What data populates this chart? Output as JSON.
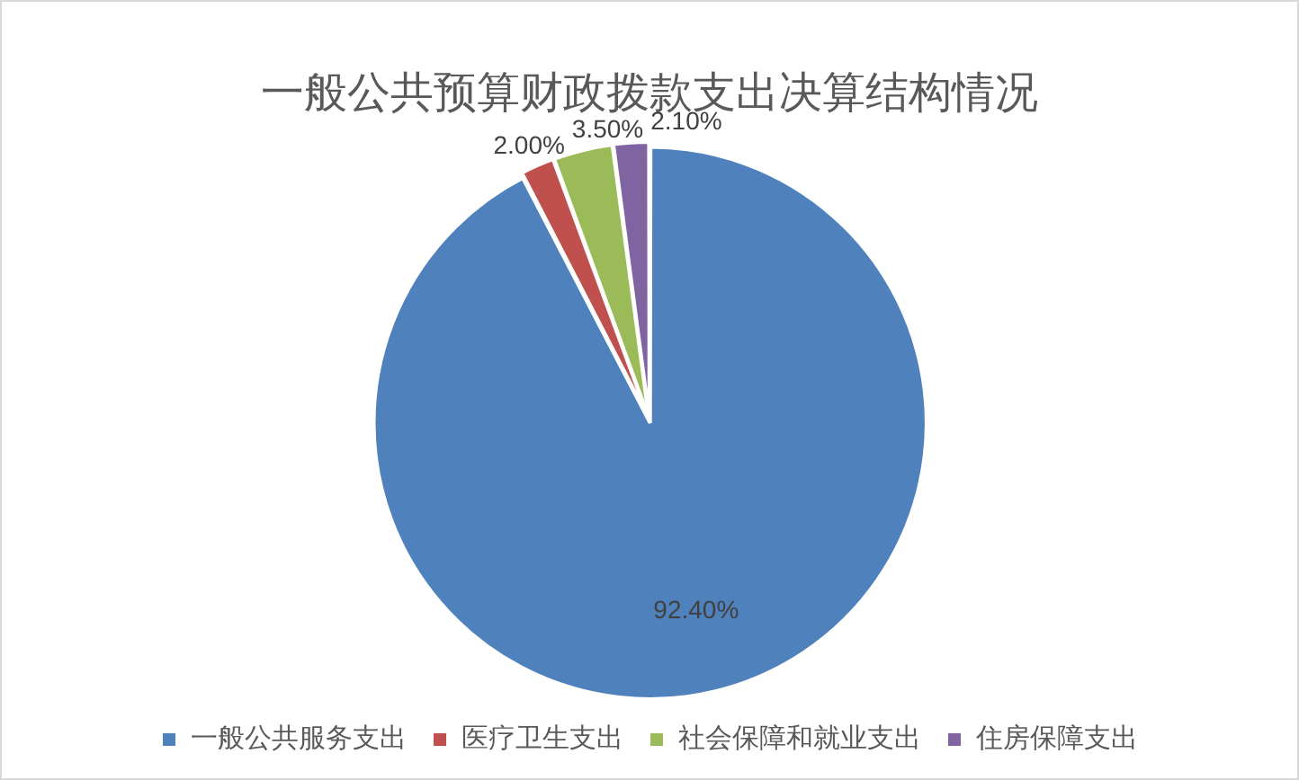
{
  "chart_data": {
    "type": "pie",
    "title": "一般公共预算财政拨款支出决算结构情况",
    "categories": [
      "一般公共服务支出",
      "医疗卫生支出",
      "社会保障和就业支出",
      "住房保障支出"
    ],
    "values": [
      92.4,
      2.0,
      3.5,
      2.1
    ],
    "colors": [
      "#4f81bd",
      "#c0504d",
      "#9bbb59",
      "#8064a2"
    ],
    "value_labels": [
      "92.40%",
      "2.00%",
      "3.50%",
      "2.10%"
    ],
    "legend": "bottom"
  }
}
